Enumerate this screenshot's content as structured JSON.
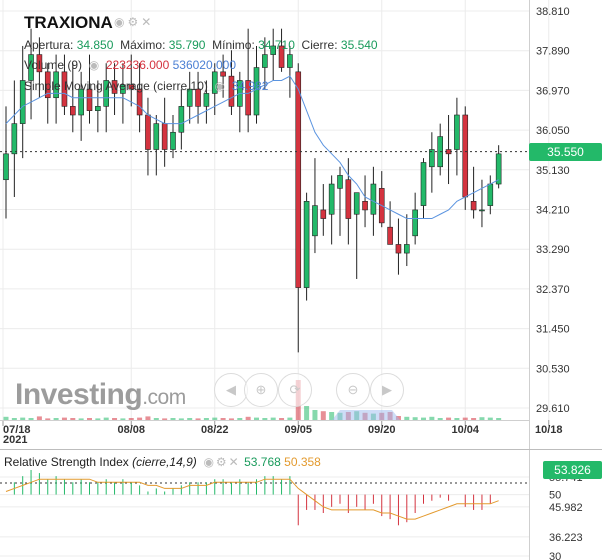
{
  "symbol": "TRAXIONA",
  "header_icons": [
    "eye-icon",
    "gear-icon",
    "close-icon"
  ],
  "ohlc": {
    "open_label": "Apertura:",
    "open": "34.850",
    "high_label": "Máximo:",
    "high": "35.790",
    "low_label": "Mínimo:",
    "low": "34.710",
    "close_label": "Cierre:",
    "close": "35.540"
  },
  "volume_legend": {
    "label": "Volume (9)",
    "v1": "223236.000",
    "v2": "536020.000"
  },
  "sma_legend": {
    "label": "Simple Moving Average (cierre,10)",
    "value": "34.982"
  },
  "current_price": "35.550",
  "rsi": {
    "label": "Relative Strength Index",
    "params": "(cierre,14,9)",
    "v1": "53.768",
    "v2": "50.358",
    "current": "53.826",
    "ticks": [
      "55.741",
      "50",
      "45.982",
      "36.223",
      "30"
    ]
  },
  "logo": {
    "text": "Investing",
    "suffix": ".com"
  },
  "toolbar": [
    "arrow-left-icon",
    "zoom-in-icon",
    "reset-icon",
    "zoom-out-icon",
    "move-icon",
    "arrow-right-icon"
  ],
  "colors": {
    "up": "#23b969",
    "down": "#d4333f",
    "sma": "#5b94e0",
    "rsi": "#e39a2e",
    "price_box": "#23b969"
  },
  "chart_data": {
    "type": "candlestick",
    "y_ticks": [
      "38.810",
      "37.890",
      "36.970",
      "36.050",
      "35.130",
      "34.210",
      "33.290",
      "32.370",
      "31.450",
      "30.530",
      "29.610"
    ],
    "ylim": [
      29.2,
      39.0
    ],
    "x_labels": [
      {
        "date": "2021-07-18",
        "text": "07/18",
        "sub": "2021"
      },
      {
        "date": "2021-08-08",
        "text": "08/08"
      },
      {
        "date": "2021-08-22",
        "text": "08/22"
      },
      {
        "date": "2021-09-05",
        "text": "09/05"
      },
      {
        "date": "2021-09-20",
        "text": "09/20"
      },
      {
        "date": "2021-10-04",
        "text": "10/04"
      },
      {
        "date": "2021-10-18",
        "text": "10/18"
      }
    ],
    "candles": [
      {
        "o": 34.9,
        "h": 36.6,
        "l": 34.0,
        "c": 35.5
      },
      {
        "o": 35.5,
        "h": 37.2,
        "l": 34.5,
        "c": 36.2
      },
      {
        "o": 36.2,
        "h": 38.0,
        "l": 35.4,
        "c": 37.2
      },
      {
        "o": 37.2,
        "h": 38.4,
        "l": 36.3,
        "c": 37.8
      },
      {
        "o": 37.8,
        "h": 38.2,
        "l": 36.8,
        "c": 37.4
      },
      {
        "o": 37.4,
        "h": 37.6,
        "l": 36.2,
        "c": 36.8
      },
      {
        "o": 36.8,
        "h": 37.8,
        "l": 36.2,
        "c": 37.4
      },
      {
        "o": 37.4,
        "h": 37.8,
        "l": 36.4,
        "c": 36.6
      },
      {
        "o": 36.6,
        "h": 37.6,
        "l": 36.0,
        "c": 36.4
      },
      {
        "o": 36.4,
        "h": 37.4,
        "l": 35.8,
        "c": 37.0
      },
      {
        "o": 37.0,
        "h": 37.8,
        "l": 36.2,
        "c": 36.5
      },
      {
        "o": 36.5,
        "h": 37.2,
        "l": 36.0,
        "c": 36.6
      },
      {
        "o": 36.6,
        "h": 37.6,
        "l": 36.0,
        "c": 37.2
      },
      {
        "o": 37.2,
        "h": 37.6,
        "l": 36.4,
        "c": 36.9
      },
      {
        "o": 36.9,
        "h": 37.6,
        "l": 36.2,
        "c": 37.1
      },
      {
        "o": 37.1,
        "h": 37.8,
        "l": 36.6,
        "c": 37.0
      },
      {
        "o": 37.0,
        "h": 37.6,
        "l": 36.0,
        "c": 36.4
      },
      {
        "o": 36.4,
        "h": 36.8,
        "l": 35.0,
        "c": 35.6
      },
      {
        "o": 35.6,
        "h": 36.4,
        "l": 35.0,
        "c": 36.2
      },
      {
        "o": 36.2,
        "h": 36.8,
        "l": 35.2,
        "c": 35.6
      },
      {
        "o": 35.6,
        "h": 36.4,
        "l": 35.4,
        "c": 36.0
      },
      {
        "o": 36.0,
        "h": 37.0,
        "l": 35.6,
        "c": 36.6
      },
      {
        "o": 36.6,
        "h": 37.4,
        "l": 36.2,
        "c": 37.0
      },
      {
        "o": 37.0,
        "h": 37.4,
        "l": 36.2,
        "c": 36.6
      },
      {
        "o": 36.6,
        "h": 37.2,
        "l": 36.2,
        "c": 36.9
      },
      {
        "o": 36.9,
        "h": 37.6,
        "l": 36.4,
        "c": 37.4
      },
      {
        "o": 37.4,
        "h": 37.8,
        "l": 36.8,
        "c": 37.3
      },
      {
        "o": 37.3,
        "h": 37.9,
        "l": 36.4,
        "c": 36.6
      },
      {
        "o": 36.6,
        "h": 37.4,
        "l": 36.0,
        "c": 37.2
      },
      {
        "o": 37.2,
        "h": 38.4,
        "l": 36.0,
        "c": 36.4
      },
      {
        "o": 36.4,
        "h": 38.0,
        "l": 36.2,
        "c": 37.5
      },
      {
        "o": 37.5,
        "h": 38.2,
        "l": 37.0,
        "c": 37.8
      },
      {
        "o": 37.8,
        "h": 38.4,
        "l": 37.2,
        "c": 38.0
      },
      {
        "o": 38.0,
        "h": 38.4,
        "l": 37.4,
        "c": 37.5
      },
      {
        "o": 37.5,
        "h": 38.0,
        "l": 36.8,
        "c": 37.8
      },
      {
        "o": 37.4,
        "h": 37.6,
        "l": 30.9,
        "c": 32.4
      },
      {
        "o": 32.4,
        "h": 34.6,
        "l": 32.1,
        "c": 34.4
      },
      {
        "o": 33.6,
        "h": 35.4,
        "l": 33.2,
        "c": 34.3
      },
      {
        "o": 34.2,
        "h": 34.8,
        "l": 33.6,
        "c": 34.0
      },
      {
        "o": 34.1,
        "h": 35.0,
        "l": 33.4,
        "c": 34.8
      },
      {
        "o": 34.7,
        "h": 35.2,
        "l": 33.6,
        "c": 35.0
      },
      {
        "o": 34.9,
        "h": 35.4,
        "l": 33.4,
        "c": 34.0
      },
      {
        "o": 34.1,
        "h": 34.6,
        "l": 32.6,
        "c": 34.6
      },
      {
        "o": 34.4,
        "h": 35.0,
        "l": 33.8,
        "c": 34.2
      },
      {
        "o": 34.1,
        "h": 35.2,
        "l": 33.6,
        "c": 34.8
      },
      {
        "o": 34.7,
        "h": 35.1,
        "l": 33.8,
        "c": 33.9
      },
      {
        "o": 33.8,
        "h": 34.4,
        "l": 33.4,
        "c": 33.4
      },
      {
        "o": 33.4,
        "h": 34.0,
        "l": 32.7,
        "c": 33.2
      },
      {
        "o": 33.2,
        "h": 34.1,
        "l": 32.9,
        "c": 33.4
      },
      {
        "o": 33.6,
        "h": 34.6,
        "l": 33.4,
        "c": 34.2
      },
      {
        "o": 34.3,
        "h": 35.4,
        "l": 34.0,
        "c": 35.3
      },
      {
        "o": 35.2,
        "h": 36.0,
        "l": 34.6,
        "c": 35.6
      },
      {
        "o": 35.2,
        "h": 36.2,
        "l": 35.0,
        "c": 35.9
      },
      {
        "o": 35.6,
        "h": 36.4,
        "l": 34.8,
        "c": 35.5
      },
      {
        "o": 35.6,
        "h": 36.8,
        "l": 35.0,
        "c": 36.4
      },
      {
        "o": 36.4,
        "h": 36.6,
        "l": 34.2,
        "c": 34.5
      },
      {
        "o": 34.4,
        "h": 35.2,
        "l": 34.0,
        "c": 34.2
      },
      {
        "o": 34.2,
        "h": 34.9,
        "l": 33.8,
        "c": 34.2
      },
      {
        "o": 34.3,
        "h": 35.0,
        "l": 34.1,
        "c": 34.8
      },
      {
        "o": 34.8,
        "h": 35.7,
        "l": 34.7,
        "c": 35.5
      }
    ],
    "sma": [
      36.2,
      36.4,
      36.6,
      36.7,
      36.8,
      36.9,
      36.9,
      36.9,
      36.8,
      36.8,
      36.8,
      36.8,
      36.8,
      36.8,
      36.8,
      36.7,
      36.6,
      36.4,
      36.3,
      36.2,
      36.2,
      36.2,
      36.3,
      36.4,
      36.5,
      36.6,
      36.7,
      36.8,
      36.9,
      36.9,
      37.0,
      37.1,
      37.2,
      37.2,
      37.3,
      37.0,
      36.5,
      36.0,
      35.7,
      35.5,
      35.3,
      35.0,
      34.8,
      34.5,
      34.4,
      34.3,
      34.2,
      34.1,
      34.0,
      34.0,
      34.0,
      34.0,
      34.1,
      34.2,
      34.4,
      34.5,
      34.6,
      34.7,
      34.8,
      34.9
    ],
    "volume": [
      0.08,
      0.05,
      0.06,
      0.05,
      0.09,
      0.04,
      0.05,
      0.06,
      0.05,
      0.04,
      0.05,
      0.04,
      0.06,
      0.05,
      0.04,
      0.05,
      0.06,
      0.09,
      0.05,
      0.04,
      0.05,
      0.04,
      0.05,
      0.04,
      0.05,
      0.06,
      0.05,
      0.04,
      0.05,
      0.08,
      0.06,
      0.05,
      0.06,
      0.05,
      0.06,
      1.0,
      0.35,
      0.25,
      0.22,
      0.2,
      0.18,
      0.2,
      0.22,
      0.18,
      0.16,
      0.18,
      0.2,
      0.1,
      0.08,
      0.07,
      0.06,
      0.08,
      0.05,
      0.06,
      0.05,
      0.06,
      0.05,
      0.07,
      0.06,
      0.05
    ],
    "rsi": [
      50,
      54,
      56,
      58,
      57,
      55,
      56,
      55,
      54,
      55,
      54,
      54,
      55,
      54,
      55,
      54,
      53,
      51,
      52,
      51,
      52,
      53,
      54,
      54,
      54,
      55,
      55,
      54,
      55,
      54,
      55,
      56,
      56,
      55,
      56,
      40,
      45,
      45,
      44,
      46,
      47,
      44,
      46,
      45,
      47,
      43,
      42,
      40,
      41,
      44,
      47,
      48,
      49,
      48,
      50,
      46,
      45,
      45,
      47,
      50
    ],
    "rsi_signal": [
      51,
      52,
      53,
      54,
      55,
      55,
      55,
      55,
      55,
      55,
      55,
      54,
      54,
      54,
      54,
      54,
      54,
      53,
      53,
      52,
      52,
      52,
      53,
      53,
      53,
      54,
      54,
      54,
      54,
      54,
      54,
      55,
      55,
      55,
      55,
      52,
      50,
      48,
      46,
      45,
      45,
      45,
      45,
      45,
      45,
      44,
      44,
      43,
      42,
      42,
      43,
      44,
      45,
      46,
      47,
      47,
      47,
      47,
      47,
      48
    ],
    "rsi_ylim": [
      30,
      58
    ]
  }
}
